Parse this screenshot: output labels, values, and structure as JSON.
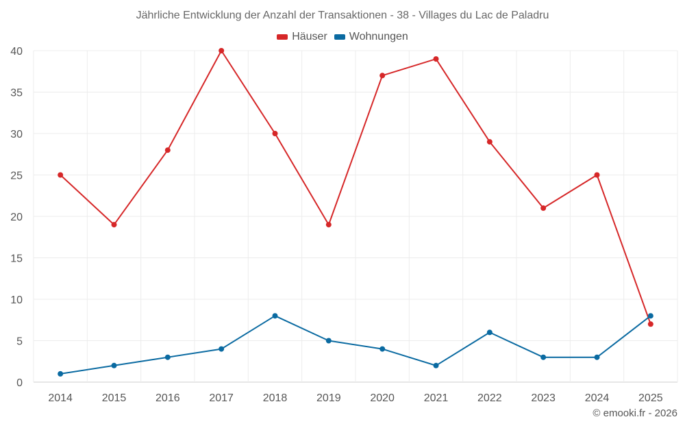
{
  "chart_data": {
    "type": "line",
    "title": "Jährliche Entwicklung der Anzahl der Transaktionen - 38 - Villages du Lac de Paladru",
    "categories": [
      "2014",
      "2015",
      "2016",
      "2017",
      "2018",
      "2019",
      "2020",
      "2021",
      "2022",
      "2023",
      "2024",
      "2025"
    ],
    "series": [
      {
        "name": "Häuser",
        "color": "#d62728",
        "values": [
          25,
          19,
          28,
          40,
          30,
          19,
          37,
          39,
          29,
          21,
          25,
          7
        ]
      },
      {
        "name": "Wohnungen",
        "color": "#0a6aa1",
        "values": [
          1,
          2,
          3,
          4,
          8,
          5,
          4,
          2,
          6,
          3,
          3,
          8
        ]
      }
    ],
    "ylim": [
      0,
      40
    ],
    "yticks": [
      0,
      5,
      10,
      15,
      20,
      25,
      30,
      35,
      40
    ],
    "grid": true,
    "legend_position": "top-center"
  },
  "footer": {
    "credit": "© emooki.fr - 2026"
  }
}
